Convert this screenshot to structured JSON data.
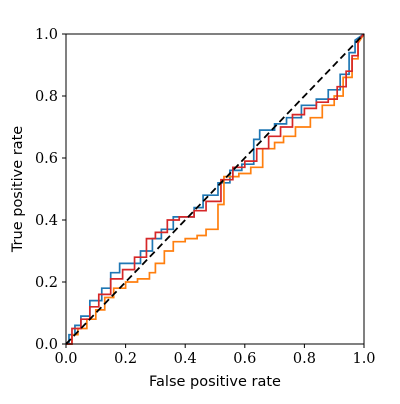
{
  "chart_data": {
    "type": "line",
    "title": "",
    "xlabel": "False positive rate",
    "ylabel": "True positive rate",
    "xlim": [
      0.0,
      1.0
    ],
    "ylim": [
      0.0,
      1.0
    ],
    "xticks": [
      "0.0",
      "0.2",
      "0.4",
      "0.6",
      "0.8",
      "1.0"
    ],
    "yticks": [
      "0.0",
      "0.2",
      "0.4",
      "0.6",
      "0.8",
      "1.0"
    ],
    "grid": false,
    "legend": "none",
    "reference_line": {
      "x": [
        0,
        1
      ],
      "y": [
        0,
        1
      ],
      "color": "#000000",
      "style": "dashed"
    },
    "series": [
      {
        "color": "#1f77b4",
        "x": [
          0.0,
          0.01,
          0.01,
          0.03,
          0.03,
          0.05,
          0.05,
          0.08,
          0.08,
          0.12,
          0.12,
          0.15,
          0.15,
          0.18,
          0.18,
          0.25,
          0.25,
          0.29,
          0.29,
          0.32,
          0.32,
          0.36,
          0.36,
          0.43,
          0.43,
          0.46,
          0.46,
          0.51,
          0.51,
          0.55,
          0.55,
          0.59,
          0.59,
          0.63,
          0.63,
          0.65,
          0.65,
          0.7,
          0.7,
          0.74,
          0.74,
          0.79,
          0.79,
          0.84,
          0.84,
          0.88,
          0.88,
          0.92,
          0.92,
          0.95,
          0.95,
          0.97,
          0.97,
          1.0
        ],
        "y": [
          0.0,
          0.0,
          0.03,
          0.03,
          0.06,
          0.06,
          0.09,
          0.09,
          0.14,
          0.14,
          0.18,
          0.18,
          0.23,
          0.23,
          0.26,
          0.26,
          0.3,
          0.3,
          0.34,
          0.34,
          0.37,
          0.37,
          0.41,
          0.41,
          0.44,
          0.44,
          0.48,
          0.48,
          0.52,
          0.52,
          0.56,
          0.56,
          0.58,
          0.58,
          0.66,
          0.66,
          0.69,
          0.69,
          0.71,
          0.71,
          0.73,
          0.73,
          0.77,
          0.77,
          0.79,
          0.79,
          0.82,
          0.82,
          0.87,
          0.87,
          0.94,
          0.94,
          0.98,
          1.0
        ]
      },
      {
        "color": "#ff7f0e",
        "x": [
          0.0,
          0.02,
          0.02,
          0.04,
          0.04,
          0.07,
          0.07,
          0.1,
          0.1,
          0.13,
          0.13,
          0.16,
          0.16,
          0.2,
          0.2,
          0.24,
          0.24,
          0.28,
          0.28,
          0.3,
          0.3,
          0.33,
          0.33,
          0.36,
          0.36,
          0.4,
          0.4,
          0.44,
          0.44,
          0.47,
          0.47,
          0.51,
          0.51,
          0.53,
          0.53,
          0.58,
          0.58,
          0.62,
          0.62,
          0.66,
          0.66,
          0.7,
          0.7,
          0.73,
          0.73,
          0.77,
          0.77,
          0.82,
          0.82,
          0.86,
          0.86,
          0.9,
          0.9,
          0.93,
          0.93,
          0.96,
          0.96,
          0.98,
          0.98,
          1.0
        ],
        "y": [
          0.0,
          0.0,
          0.03,
          0.03,
          0.05,
          0.05,
          0.08,
          0.08,
          0.11,
          0.11,
          0.15,
          0.15,
          0.18,
          0.18,
          0.2,
          0.2,
          0.21,
          0.21,
          0.23,
          0.23,
          0.26,
          0.26,
          0.3,
          0.3,
          0.33,
          0.33,
          0.34,
          0.34,
          0.35,
          0.35,
          0.37,
          0.37,
          0.45,
          0.45,
          0.54,
          0.54,
          0.55,
          0.55,
          0.57,
          0.57,
          0.63,
          0.63,
          0.65,
          0.65,
          0.67,
          0.67,
          0.7,
          0.7,
          0.73,
          0.73,
          0.77,
          0.77,
          0.8,
          0.8,
          0.86,
          0.86,
          0.92,
          0.92,
          0.97,
          1.0
        ]
      },
      {
        "color": "#d62728",
        "x": [
          0.0,
          0.02,
          0.02,
          0.05,
          0.05,
          0.08,
          0.08,
          0.11,
          0.11,
          0.15,
          0.15,
          0.19,
          0.19,
          0.23,
          0.23,
          0.27,
          0.27,
          0.3,
          0.3,
          0.34,
          0.34,
          0.38,
          0.38,
          0.43,
          0.43,
          0.47,
          0.47,
          0.52,
          0.52,
          0.56,
          0.56,
          0.6,
          0.6,
          0.64,
          0.64,
          0.68,
          0.68,
          0.72,
          0.72,
          0.76,
          0.76,
          0.8,
          0.8,
          0.84,
          0.84,
          0.88,
          0.88,
          0.91,
          0.91,
          0.94,
          0.94,
          0.96,
          0.96,
          0.98,
          0.98,
          1.0
        ],
        "y": [
          0.0,
          0.0,
          0.05,
          0.05,
          0.08,
          0.08,
          0.12,
          0.12,
          0.16,
          0.16,
          0.21,
          0.21,
          0.24,
          0.24,
          0.28,
          0.28,
          0.34,
          0.34,
          0.36,
          0.36,
          0.4,
          0.4,
          0.41,
          0.41,
          0.43,
          0.43,
          0.46,
          0.46,
          0.53,
          0.53,
          0.57,
          0.57,
          0.59,
          0.59,
          0.63,
          0.63,
          0.67,
          0.67,
          0.7,
          0.7,
          0.74,
          0.74,
          0.76,
          0.76,
          0.78,
          0.78,
          0.79,
          0.79,
          0.83,
          0.83,
          0.88,
          0.88,
          0.93,
          0.93,
          0.98,
          1.0
        ]
      }
    ]
  }
}
